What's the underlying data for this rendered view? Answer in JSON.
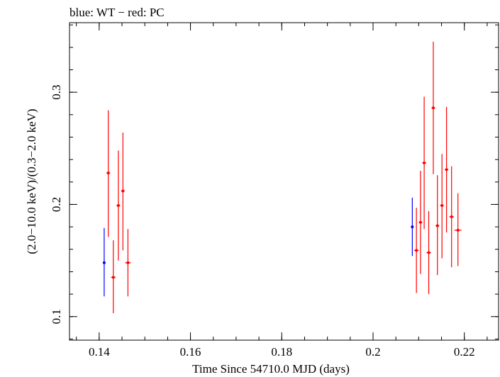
{
  "chart_data": {
    "type": "scatter",
    "title": "blue: WT − red: PC",
    "xlabel": "Time Since 54710.0 MJD (days)",
    "ylabel": "(2.0−10.0 keV)/(0.3−2.0 keV)",
    "xlim": [
      0.1335,
      0.2275
    ],
    "ylim": [
      0.079,
      0.362
    ],
    "x_ticks": [
      {
        "value": 0.14,
        "label": "0.14"
      },
      {
        "value": 0.16,
        "label": "0.16"
      },
      {
        "value": 0.18,
        "label": "0.18"
      },
      {
        "value": 0.2,
        "label": "0.2"
      },
      {
        "value": 0.22,
        "label": "0.22"
      }
    ],
    "y_ticks": [
      {
        "value": 0.1,
        "label": "0.1"
      },
      {
        "value": 0.2,
        "label": "0.2"
      },
      {
        "value": 0.3,
        "label": "0.3"
      }
    ],
    "x_minor_step": 0.005,
    "y_minor_step": 0.02,
    "grid": false,
    "series": [
      {
        "name": "WT",
        "color": "#0000ff",
        "points": [
          {
            "x": 0.1411,
            "y": 0.148,
            "ylo": 0.118,
            "yhi": 0.179,
            "xerr": 0.0002
          },
          {
            "x": 0.2086,
            "y": 0.18,
            "ylo": 0.154,
            "yhi": 0.206,
            "xerr": 0.0002
          }
        ]
      },
      {
        "name": "PC",
        "color": "#ff0000",
        "points": [
          {
            "x": 0.142,
            "y": 0.228,
            "ylo": 0.171,
            "yhi": 0.284,
            "xerr": 0.0004
          },
          {
            "x": 0.1431,
            "y": 0.135,
            "ylo": 0.103,
            "yhi": 0.168,
            "xerr": 0.0005
          },
          {
            "x": 0.1442,
            "y": 0.199,
            "ylo": 0.15,
            "yhi": 0.248,
            "xerr": 0.0004
          },
          {
            "x": 0.1452,
            "y": 0.212,
            "ylo": 0.159,
            "yhi": 0.264,
            "xerr": 0.0004
          },
          {
            "x": 0.1463,
            "y": 0.148,
            "ylo": 0.118,
            "yhi": 0.178,
            "xerr": 0.0006
          },
          {
            "x": 0.2095,
            "y": 0.159,
            "ylo": 0.121,
            "yhi": 0.197,
            "xerr": 0.0005
          },
          {
            "x": 0.2104,
            "y": 0.184,
            "ylo": 0.138,
            "yhi": 0.23,
            "xerr": 0.0004
          },
          {
            "x": 0.2112,
            "y": 0.237,
            "ylo": 0.178,
            "yhi": 0.296,
            "xerr": 0.0004
          },
          {
            "x": 0.2122,
            "y": 0.157,
            "ylo": 0.12,
            "yhi": 0.194,
            "xerr": 0.0005
          },
          {
            "x": 0.2132,
            "y": 0.286,
            "ylo": 0.227,
            "yhi": 0.345,
            "xerr": 0.0004
          },
          {
            "x": 0.2141,
            "y": 0.181,
            "ylo": 0.137,
            "yhi": 0.226,
            "xerr": 0.0004
          },
          {
            "x": 0.2151,
            "y": 0.199,
            "ylo": 0.152,
            "yhi": 0.245,
            "xerr": 0.0004
          },
          {
            "x": 0.2161,
            "y": 0.231,
            "ylo": 0.175,
            "yhi": 0.287,
            "xerr": 0.0004
          },
          {
            "x": 0.2172,
            "y": 0.189,
            "ylo": 0.144,
            "yhi": 0.234,
            "xerr": 0.0005
          },
          {
            "x": 0.2186,
            "y": 0.177,
            "ylo": 0.145,
            "yhi": 0.21,
            "xerr": 0.0008
          }
        ]
      }
    ]
  }
}
